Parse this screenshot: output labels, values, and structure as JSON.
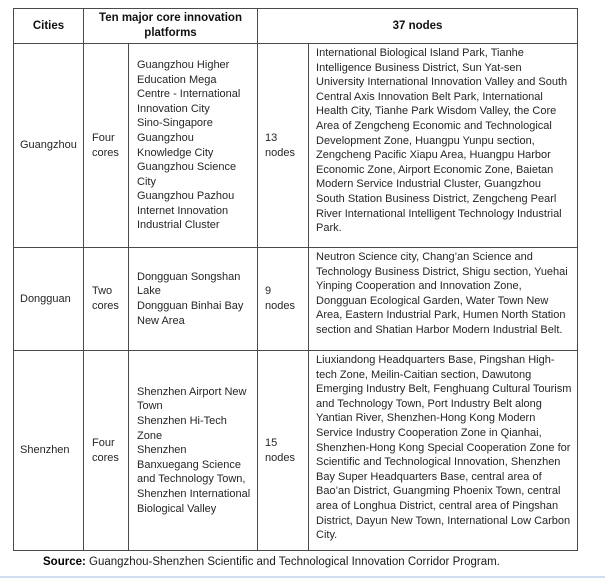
{
  "colors": {
    "table_border": "#4a4a4a",
    "body_text": "#262626",
    "bottom_strip": "#cfdeee"
  },
  "header": {
    "cities": "Cities",
    "platforms": "Ten major core innovation platforms",
    "nodes": "37 nodes"
  },
  "rows": [
    {
      "city": "Guangzhou",
      "cores": "Four cores",
      "platforms": [
        "Guangzhou Higher Education Mega Centre - International Innovation City",
        "Sino-Singapore Guangzhou Knowledge City",
        "Guangzhou Science City",
        "Guangzhou Pazhou Internet Innovation Industrial Cluster"
      ],
      "node_count": "13 nodes",
      "node_list": "International Biological Island Park, Tianhe Intelligence Business District, Sun Yat-sen University International Innovation Valley and South Central Axis Innovation Belt Park, International Health City, Tianhe Park Wisdom Valley, the Core Area of Zengcheng Economic and Technological Development Zone, Huangpu Yunpu section, Zengcheng Pacific Xiapu Area, Huangpu Harbor Economic Zone, Airport Economic Zone, Baietan Modern Service Industrial Cluster, Guangzhou South Station Business District, Zengcheng Pearl River International Intelligent Technology Industrial Park."
    },
    {
      "city": "Dongguan",
      "cores": "Two cores",
      "platforms": [
        "Dongguan Songshan Lake",
        "Dongguan Binhai Bay New Area"
      ],
      "node_count": "9 nodes",
      "node_list": "Neutron Science city, Chang’an Science and Technology Business District, Shigu section, Yuehai Yinping Cooperation and Innovation Zone, Dongguan Ecological Garden, Water Town New Area, Eastern Industrial Park, Humen North Station section and Shatian Harbor Modern Industrial Belt."
    },
    {
      "city": "Shenzhen",
      "cores": "Four cores",
      "platforms": [
        "Shenzhen Airport New Town",
        "Shenzhen Hi-Tech Zone",
        "Shenzhen Banxuegang Science and Technology Town,",
        "Shenzhen International Biological Valley"
      ],
      "node_count": "15 nodes",
      "node_list": "Liuxiandong Headquarters Base, Pingshan High-tech Zone, Meilin-Caitian section, Dawutong Emerging Industry Belt, Fenghuang Cultural Tourism and Technology Town, Port Industry Belt along Yantian River, Shenzhen-Hong Kong Modern Service Industry Cooperation Zone in Qianhai, Shenzhen-Hong Kong Special Cooperation Zone for Scientific and Technological Innovation, Shenzhen Bay Super Headquarters Base, central area of Bao’an District, Guangming Phoenix Town, central area of Longhua District, central area of Pingshan District, Dayun New Town, International Low Carbon City."
    }
  ],
  "source": {
    "label": "Source:",
    "text": "Guangzhou-Shenzhen Scientific and Technological Innovation Corridor Program."
  }
}
